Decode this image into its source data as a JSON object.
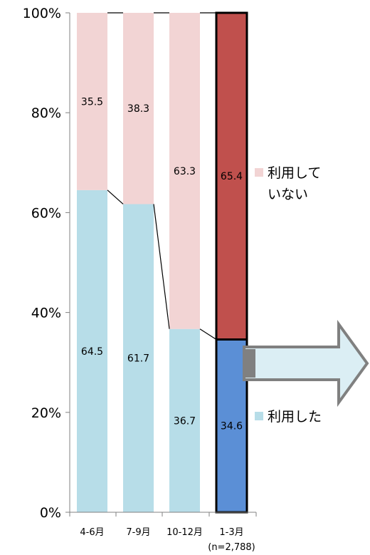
{
  "chart_data": {
    "type": "bar",
    "stacked": true,
    "percent": true,
    "categories": [
      "4-6月",
      "7-9月",
      "10-12月",
      "1-3月"
    ],
    "series": [
      {
        "name": "利用した",
        "values": [
          64.5,
          61.7,
          36.7,
          34.6
        ]
      },
      {
        "name": "利用して\nいない",
        "values": [
          35.5,
          38.3,
          63.3,
          65.4
        ]
      }
    ],
    "yticks": [
      "0%",
      "20%",
      "40%",
      "60%",
      "80%",
      "100%"
    ],
    "ylim": [
      0,
      100
    ],
    "note": "(n=2,788)",
    "legend_position": "right",
    "highlight_category": "1-3月",
    "grid": false,
    "colors": {
      "used": "#b7dde8",
      "not_used": "#f2d4d4",
      "used_highlight": "#5b8fd6",
      "not_used_highlight": "#c0504d",
      "arrow_fill": "#dbeef4",
      "arrow_stroke": "#808080"
    }
  }
}
